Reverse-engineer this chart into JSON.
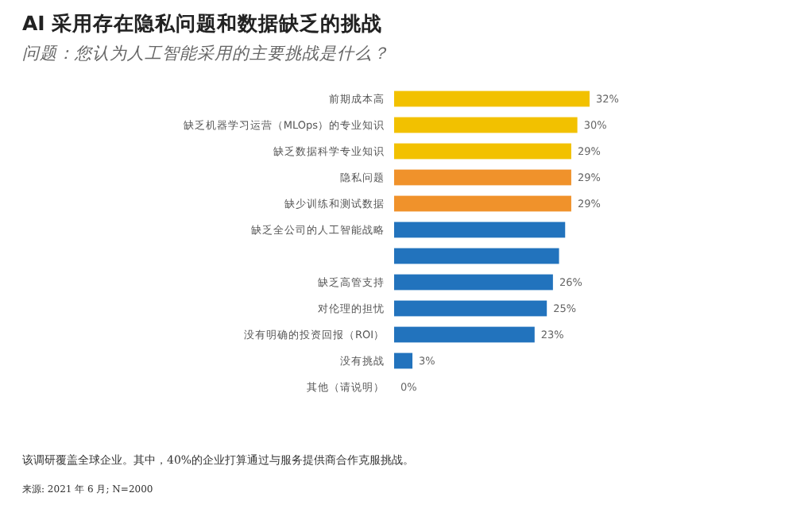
{
  "chart_data": {
    "type": "bar",
    "orientation": "horizontal",
    "relative": false,
    "title": "AI 采用存在隐私问题和数据缺乏的挑战",
    "subtitle": "问题：您认为人工智能采用的主要挑战是什么？",
    "categories": [
      "前期成本高",
      "缺乏机器学习运营（MLOps）的专业知识",
      "缺乏数据科学专业知识",
      "隐私问题",
      "缺少训练和测试数据",
      "缺乏全公司的人工智能战略",
      null,
      "缺乏高管支持",
      "对伦理的担忧",
      "没有明确的投资回报（ROI）",
      "没有挑战",
      "其他（请说明）"
    ],
    "values": [
      32,
      30,
      29,
      29,
      29,
      28,
      27,
      26,
      25,
      23,
      3,
      0
    ],
    "value_labels": [
      "32%",
      "30%",
      "29%",
      "29%",
      "29%",
      null,
      null,
      "26%",
      "25%",
      "23%",
      "3%",
      "0%"
    ],
    "colors": [
      "#f2c100",
      "#f2c100",
      "#f2c100",
      "#f0922b",
      "#f0922b",
      "#2273bd",
      "#2273bd",
      "#2273bd",
      "#2273bd",
      "#2273bd",
      "#2273bd",
      "#2273bd"
    ],
    "xlim": [
      0,
      32
    ],
    "annotations": [
      "该调研覆盖全球企业。其中，40%的企业打算通过与服务提供商合作克服挑战。",
      "来源: 2021 年 6 月; N=2000"
    ]
  }
}
